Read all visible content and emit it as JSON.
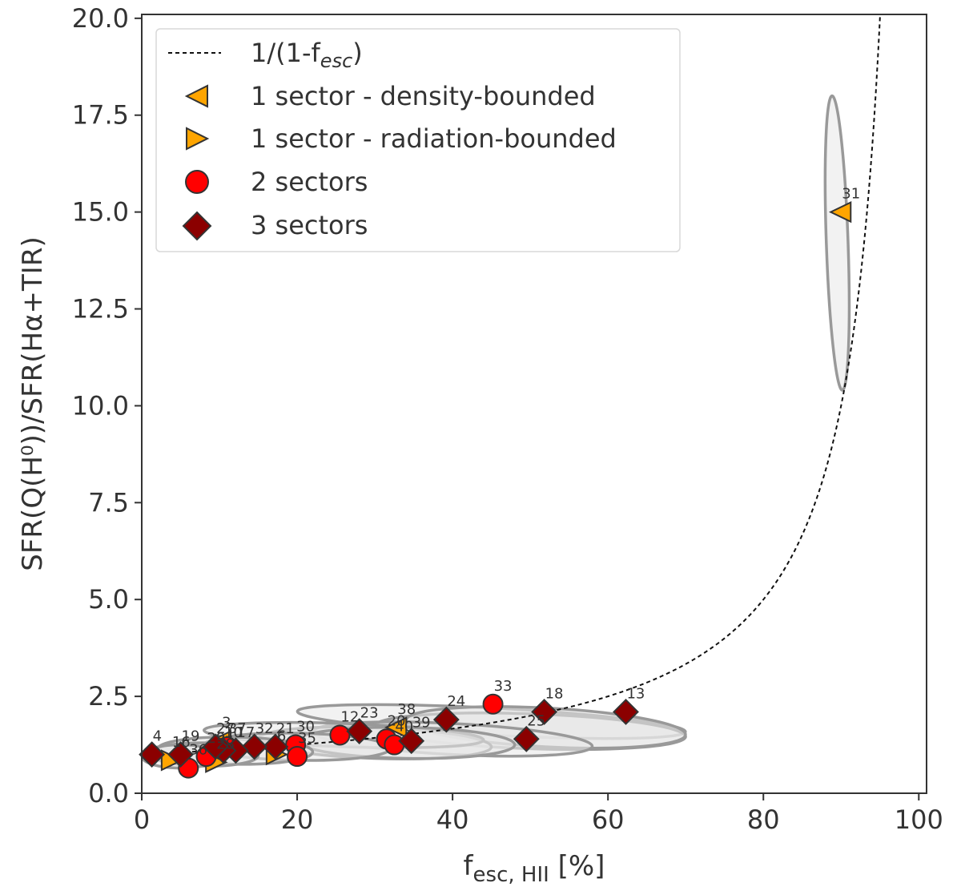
{
  "chart_data": {
    "type": "scatter",
    "xlabel": "f",
    "xlabel_sub": "esc, HII",
    "xlabel_unit": " [%]",
    "ylabel": "SFR(Q(H⁰))/SFR(Hα+TIR)",
    "xlim": [
      0,
      101
    ],
    "ylim": [
      0,
      20.1
    ],
    "x_ticks": [
      0,
      20,
      40,
      60,
      80,
      100
    ],
    "x_tick_labels": [
      "0",
      "20",
      "40",
      "60",
      "80",
      "100"
    ],
    "y_ticks": [
      0,
      2.5,
      5,
      7.5,
      10,
      12.5,
      15,
      17.5,
      20
    ],
    "y_tick_labels": [
      "0.0",
      "2.5",
      "5.0",
      "7.5",
      "10.0",
      "12.5",
      "15.0",
      "17.5",
      "20.0"
    ],
    "grid": false,
    "legend": {
      "placement": "top-left",
      "entries": [
        {
          "label": "1/(1-f",
          "sub": "esc",
          "tail": ")",
          "kind": "line"
        },
        {
          "label": "1 sector - density-bounded",
          "kind": "tri-left"
        },
        {
          "label": "1 sector - radiation-bounded",
          "kind": "tri-right"
        },
        {
          "label": "2 sectors",
          "kind": "circle"
        },
        {
          "label": "3 sectors",
          "kind": "diamond"
        }
      ]
    },
    "colors": {
      "one_sector": "#ffa500",
      "two_sectors": "#ff0000",
      "three_sectors": "#8b0000",
      "ellipse_fill": "#e8e8e8",
      "ellipse_stroke": "#999999",
      "text": "#333333"
    },
    "curve": {
      "function": "1/(1-f/100)",
      "x_range": [
        0,
        95.2
      ]
    },
    "ellipses": [
      {
        "cx": 89.5,
        "cy": 14.2,
        "rx": 1.4,
        "ry": 3.8,
        "angle": -2
      },
      {
        "cx": 45,
        "cy": 1.85,
        "rx": 25,
        "ry": 0.35,
        "angle": 3
      },
      {
        "cx": 50,
        "cy": 1.6,
        "rx": 20,
        "ry": 0.45,
        "angle": 2
      },
      {
        "cx": 52,
        "cy": 1.7,
        "rx": 18,
        "ry": 0.5,
        "angle": 3
      },
      {
        "cx": 40,
        "cy": 1.4,
        "rx": 18,
        "ry": 0.4,
        "angle": 3
      },
      {
        "cx": 30,
        "cy": 1.3,
        "rx": 15,
        "ry": 0.4,
        "angle": 2
      },
      {
        "cx": 26,
        "cy": 1.5,
        "rx": 18,
        "ry": 0.3,
        "angle": 2
      },
      {
        "cx": 34,
        "cy": 1.3,
        "rx": 14,
        "ry": 0.4,
        "angle": 1
      },
      {
        "cx": 20,
        "cy": 1.2,
        "rx": 12,
        "ry": 0.35,
        "angle": 1
      },
      {
        "cx": 12,
        "cy": 1.1,
        "rx": 10,
        "ry": 0.35,
        "angle": 1
      },
      {
        "cx": 8,
        "cy": 1.0,
        "rx": 7,
        "ry": 0.3,
        "angle": 1
      },
      {
        "cx": 5,
        "cy": 0.95,
        "rx": 5,
        "ry": 0.3,
        "angle": 0
      }
    ],
    "series": [
      {
        "name": "1 sector - density-bounded",
        "marker": "tri-left",
        "points": [
          {
            "x": 90,
            "y": 15.0,
            "label": "31"
          },
          {
            "x": 32.8,
            "y": 1.7,
            "label": "38"
          },
          {
            "x": 10.2,
            "y": 1.35,
            "label": "3"
          }
        ]
      },
      {
        "name": "1 sector - radiation-bounded",
        "marker": "tri-right",
        "points": [
          {
            "x": 3.8,
            "y": 0.85,
            "label": "16"
          },
          {
            "x": 9.5,
            "y": 0.8,
            "label": "28"
          },
          {
            "x": 17.3,
            "y": 1.0,
            "label": "6"
          }
        ]
      },
      {
        "name": "2 sectors",
        "marker": "circle",
        "points": [
          {
            "x": 45.2,
            "y": 2.3,
            "label": "33"
          },
          {
            "x": 25.5,
            "y": 1.5,
            "label": "12"
          },
          {
            "x": 31.5,
            "y": 1.4,
            "label": "20"
          },
          {
            "x": 32.5,
            "y": 1.25,
            "label": "40"
          },
          {
            "x": 19.8,
            "y": 1.25,
            "label": "30"
          },
          {
            "x": 20.0,
            "y": 0.95,
            "label": "35"
          },
          {
            "x": 8.3,
            "y": 0.95,
            "label": "29"
          },
          {
            "x": 6.0,
            "y": 0.65,
            "label": "36"
          },
          {
            "x": 11.0,
            "y": 1.2,
            "label": "37"
          }
        ]
      },
      {
        "name": "3 sectors",
        "marker": "diamond",
        "points": [
          {
            "x": 62.3,
            "y": 2.1,
            "label": "13"
          },
          {
            "x": 51.8,
            "y": 2.1,
            "label": "18"
          },
          {
            "x": 49.5,
            "y": 1.4,
            "label": "25"
          },
          {
            "x": 39.2,
            "y": 1.9,
            "label": "24"
          },
          {
            "x": 28.0,
            "y": 1.6,
            "label": "23"
          },
          {
            "x": 34.7,
            "y": 1.35,
            "label": "39"
          },
          {
            "x": 17.2,
            "y": 1.2,
            "label": "21"
          },
          {
            "x": 14.5,
            "y": 1.2,
            "label": "32"
          },
          {
            "x": 12.1,
            "y": 1.1,
            "label": "17"
          },
          {
            "x": 10.5,
            "y": 1.1,
            "label": "10"
          },
          {
            "x": 9.5,
            "y": 1.2,
            "label": "27"
          },
          {
            "x": 5.0,
            "y": 1.0,
            "label": "19"
          },
          {
            "x": 1.3,
            "y": 1.0,
            "label": "4"
          }
        ]
      }
    ]
  }
}
